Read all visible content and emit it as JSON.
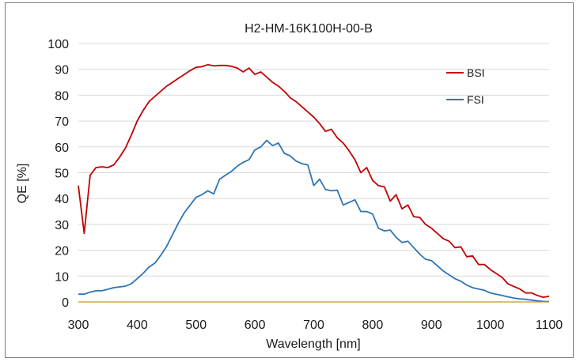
{
  "chart_data": {
    "type": "line",
    "title": "H2-HM-16K100H-00-B",
    "xlabel": "Wavelength [nm]",
    "ylabel": "QE [%]",
    "xlim": [
      300,
      1100
    ],
    "ylim": [
      0,
      100
    ],
    "x_ticks": [
      300,
      400,
      500,
      600,
      700,
      800,
      900,
      1000,
      1100
    ],
    "y_ticks": [
      0,
      10,
      20,
      30,
      40,
      50,
      60,
      70,
      80,
      90,
      100
    ],
    "grid": "horizontal",
    "legend_position": "top-right",
    "series": [
      {
        "name": "BSI",
        "color": "#c00000",
        "x": [
          300,
          310,
          320,
          330,
          340,
          350,
          360,
          370,
          380,
          390,
          400,
          410,
          420,
          430,
          440,
          450,
          460,
          470,
          480,
          490,
          500,
          510,
          520,
          530,
          540,
          550,
          560,
          570,
          580,
          590,
          600,
          610,
          620,
          630,
          640,
          650,
          660,
          670,
          680,
          690,
          700,
          710,
          720,
          730,
          740,
          750,
          760,
          770,
          780,
          790,
          800,
          810,
          820,
          830,
          840,
          850,
          860,
          870,
          880,
          890,
          900,
          910,
          920,
          930,
          940,
          950,
          960,
          970,
          980,
          990,
          1000,
          1010,
          1020,
          1030,
          1040,
          1050,
          1060,
          1070,
          1080,
          1090,
          1100
        ],
        "y": [
          45,
          26.5,
          49,
          52,
          52.3,
          52,
          53,
          56,
          59.5,
          64.5,
          70,
          74,
          77.5,
          79.5,
          81.5,
          83.5,
          85,
          86.5,
          88,
          89.5,
          90.8,
          91,
          91.8,
          91.3,
          91.5,
          91.5,
          91.2,
          90.5,
          89,
          90.5,
          88,
          89,
          87,
          85,
          83.5,
          81.5,
          79,
          77.5,
          75.5,
          73.5,
          71.5,
          69,
          66,
          66.8,
          63.5,
          61.5,
          58.5,
          55,
          50,
          52,
          47,
          45,
          44.5,
          39,
          41.5,
          36,
          37.5,
          33,
          32.7,
          30,
          28.5,
          26.5,
          24.5,
          23.5,
          21,
          21.3,
          17.5,
          17.8,
          14.5,
          14.5,
          12.5,
          11,
          9.5,
          7,
          6,
          5,
          3.5,
          3.5,
          2.5,
          1.8,
          2.2
        ]
      },
      {
        "name": "FSI",
        "color": "#2e75b6",
        "x": [
          300,
          310,
          320,
          330,
          340,
          350,
          360,
          370,
          380,
          390,
          400,
          410,
          420,
          430,
          440,
          450,
          460,
          470,
          480,
          490,
          500,
          510,
          520,
          530,
          540,
          550,
          560,
          570,
          580,
          590,
          600,
          610,
          620,
          630,
          640,
          650,
          660,
          670,
          680,
          690,
          700,
          710,
          720,
          730,
          740,
          750,
          760,
          770,
          780,
          790,
          800,
          810,
          820,
          830,
          840,
          850,
          860,
          870,
          880,
          890,
          900,
          910,
          920,
          930,
          940,
          950,
          960,
          970,
          980,
          990,
          1000,
          1010,
          1020,
          1030,
          1040,
          1050,
          1060,
          1070,
          1080,
          1090,
          1100
        ],
        "y": [
          3,
          3,
          3.8,
          4.3,
          4.3,
          4.9,
          5.5,
          5.8,
          6.1,
          7,
          9,
          11,
          13.5,
          15,
          18,
          21.5,
          26,
          30.5,
          34.5,
          37.5,
          40.5,
          41.5,
          43,
          41.8,
          47.5,
          49,
          50.5,
          52.5,
          54,
          55,
          58.8,
          60,
          62.5,
          60.5,
          61.5,
          57.5,
          56.5,
          54.5,
          53.5,
          53,
          45,
          47.5,
          43.5,
          43,
          43.2,
          37.5,
          38.5,
          39.5,
          35,
          35,
          34,
          28.5,
          27.5,
          27.8,
          25,
          23,
          23.5,
          21,
          18.5,
          16.5,
          16,
          14,
          12,
          10.5,
          9,
          8,
          6.5,
          5.5,
          5,
          4.5,
          3.5,
          3,
          2.5,
          2,
          1.5,
          1.2,
          1,
          0.7,
          0.4,
          0.2,
          0.1
        ]
      },
      {
        "color": "#c59a1a",
        "x": [
          300,
          1100
        ],
        "y": [
          0,
          0
        ]
      }
    ]
  }
}
